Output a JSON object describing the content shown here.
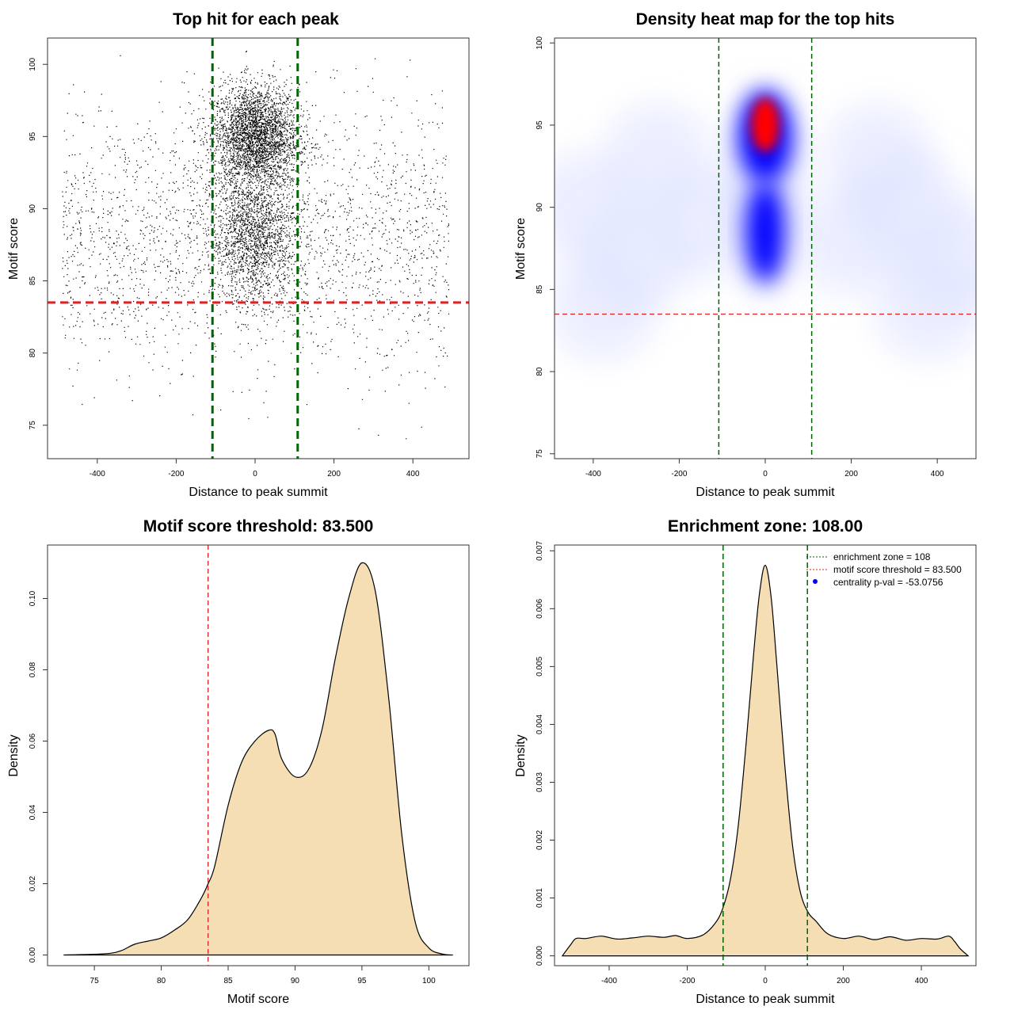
{
  "chart_data": [
    {
      "type": "scatter",
      "title": "Top hit for each peak",
      "xlabel": "Distance to peak summit",
      "ylabel": "Motif score",
      "xlim": [
        -500,
        500
      ],
      "ylim": [
        74,
        101
      ],
      "xticks": [
        -400,
        -200,
        0,
        200,
        400
      ],
      "yticks": [
        75,
        80,
        85,
        90,
        95,
        100
      ],
      "enrichment_zone": 108,
      "score_threshold": 83.5,
      "colors": {
        "points": "#000000",
        "zone_lines": "#006400",
        "threshold_line": "#dd2222"
      },
      "point_clusters": [
        {
          "x_center": 0,
          "x_spread": 55,
          "y_center": 95,
          "y_spread": 1.8,
          "count": 3200
        },
        {
          "x_center": 0,
          "x_spread": 55,
          "y_center": 88,
          "y_spread": 2.2,
          "count": 1800
        },
        {
          "x_range": [
            -490,
            490
          ],
          "y_center": 88,
          "y_spread": 4.5,
          "count": 2300
        }
      ]
    },
    {
      "type": "heatmap",
      "title": "Density heat map for the top hits",
      "xlabel": "Distance to peak summit",
      "ylabel": "Motif score",
      "xlim": [
        -490,
        490
      ],
      "ylim": [
        74.7,
        100.3
      ],
      "xticks": [
        -400,
        -200,
        0,
        200,
        400
      ],
      "yticks": [
        75,
        80,
        85,
        90,
        95,
        100
      ],
      "enrichment_zone": 108,
      "score_threshold": 83.5,
      "colors": {
        "low": "#ffffff",
        "mid": "#0000ff",
        "high": "#ff0000",
        "zone_lines": "#006400",
        "threshold_line": "#dd2222"
      },
      "peak": {
        "x": 0,
        "y": 95
      }
    },
    {
      "type": "area",
      "title": "Motif score threshold: 83.500",
      "xlabel": "Motif score",
      "ylabel": "Density",
      "xlim": [
        71.5,
        103
      ],
      "ylim": [
        -0.003,
        0.115
      ],
      "xticks": [
        75,
        80,
        85,
        90,
        95,
        100
      ],
      "yticks": [
        0.0,
        0.02,
        0.04,
        0.06,
        0.08,
        0.1
      ],
      "ytick_labels": [
        "0.00",
        "0.02",
        "0.04",
        "0.06",
        "0.08",
        "0.10"
      ],
      "threshold": 83.5,
      "colors": {
        "fill": "#f5deb3",
        "line": "#000000",
        "threshold_line": "#dd2222"
      },
      "x": [
        72.7,
        74,
        76,
        77,
        78,
        79,
        80,
        81,
        82,
        83,
        83.5,
        84,
        85,
        86,
        87,
        88,
        88.5,
        89,
        90,
        91,
        92,
        93,
        94,
        95,
        96,
        97,
        98,
        99,
        100,
        101,
        101.8
      ],
      "y": [
        0.0,
        0.0001,
        0.0004,
        0.0012,
        0.003,
        0.0039,
        0.0048,
        0.007,
        0.01,
        0.016,
        0.02,
        0.025,
        0.042,
        0.054,
        0.06,
        0.063,
        0.062,
        0.055,
        0.05,
        0.052,
        0.063,
        0.083,
        0.1,
        0.11,
        0.102,
        0.072,
        0.033,
        0.009,
        0.002,
        0.0003,
        0.0
      ]
    },
    {
      "type": "area",
      "title": "Enrichment zone: 108.00",
      "xlabel": "Distance to peak summit",
      "ylabel": "Density",
      "xlim": [
        -540,
        540
      ],
      "ylim": [
        -0.00017,
        0.0071
      ],
      "xticks": [
        -400,
        -200,
        0,
        200,
        400
      ],
      "yticks": [
        0.0,
        0.001,
        0.002,
        0.003,
        0.004,
        0.005,
        0.006,
        0.007
      ],
      "ytick_labels": [
        "0.000",
        "0.001",
        "0.002",
        "0.003",
        "0.004",
        "0.005",
        "0.006",
        "0.007"
      ],
      "enrichment_zone": 108,
      "colors": {
        "fill": "#f5deb3",
        "line": "#000000",
        "zone_lines": "#006400"
      },
      "x": [
        -520,
        -500,
        -485,
        -460,
        -420,
        -380,
        -340,
        -300,
        -260,
        -230,
        -200,
        -160,
        -130,
        -110,
        -90,
        -70,
        -50,
        -30,
        -15,
        0,
        15,
        30,
        50,
        70,
        90,
        110,
        130,
        160,
        200,
        240,
        280,
        320,
        360,
        400,
        440,
        470,
        485,
        500,
        520
      ],
      "y": [
        0.0,
        0.00018,
        0.0003,
        0.0003,
        0.00034,
        0.00029,
        0.00031,
        0.00034,
        0.00032,
        0.00035,
        0.0003,
        0.00036,
        0.00055,
        0.0008,
        0.0013,
        0.0022,
        0.0036,
        0.0052,
        0.00625,
        0.00675,
        0.0062,
        0.005,
        0.0033,
        0.0019,
        0.0011,
        0.00075,
        0.0006,
        0.00038,
        0.0003,
        0.00034,
        0.00028,
        0.00033,
        0.00027,
        0.0003,
        0.00029,
        0.00034,
        0.00025,
        0.00012,
        0.0
      ],
      "legend": {
        "position": "top-right",
        "entries": [
          {
            "label": "enrichment zone = 108",
            "style": "dotted-line",
            "color": "#006400"
          },
          {
            "label": "motif score threshold = 83.500",
            "style": "dotted-line",
            "color": "#dd2222"
          },
          {
            "label": "centrality p-val = -53.0756",
            "style": "dot",
            "color": "#0000ff"
          }
        ]
      }
    }
  ]
}
